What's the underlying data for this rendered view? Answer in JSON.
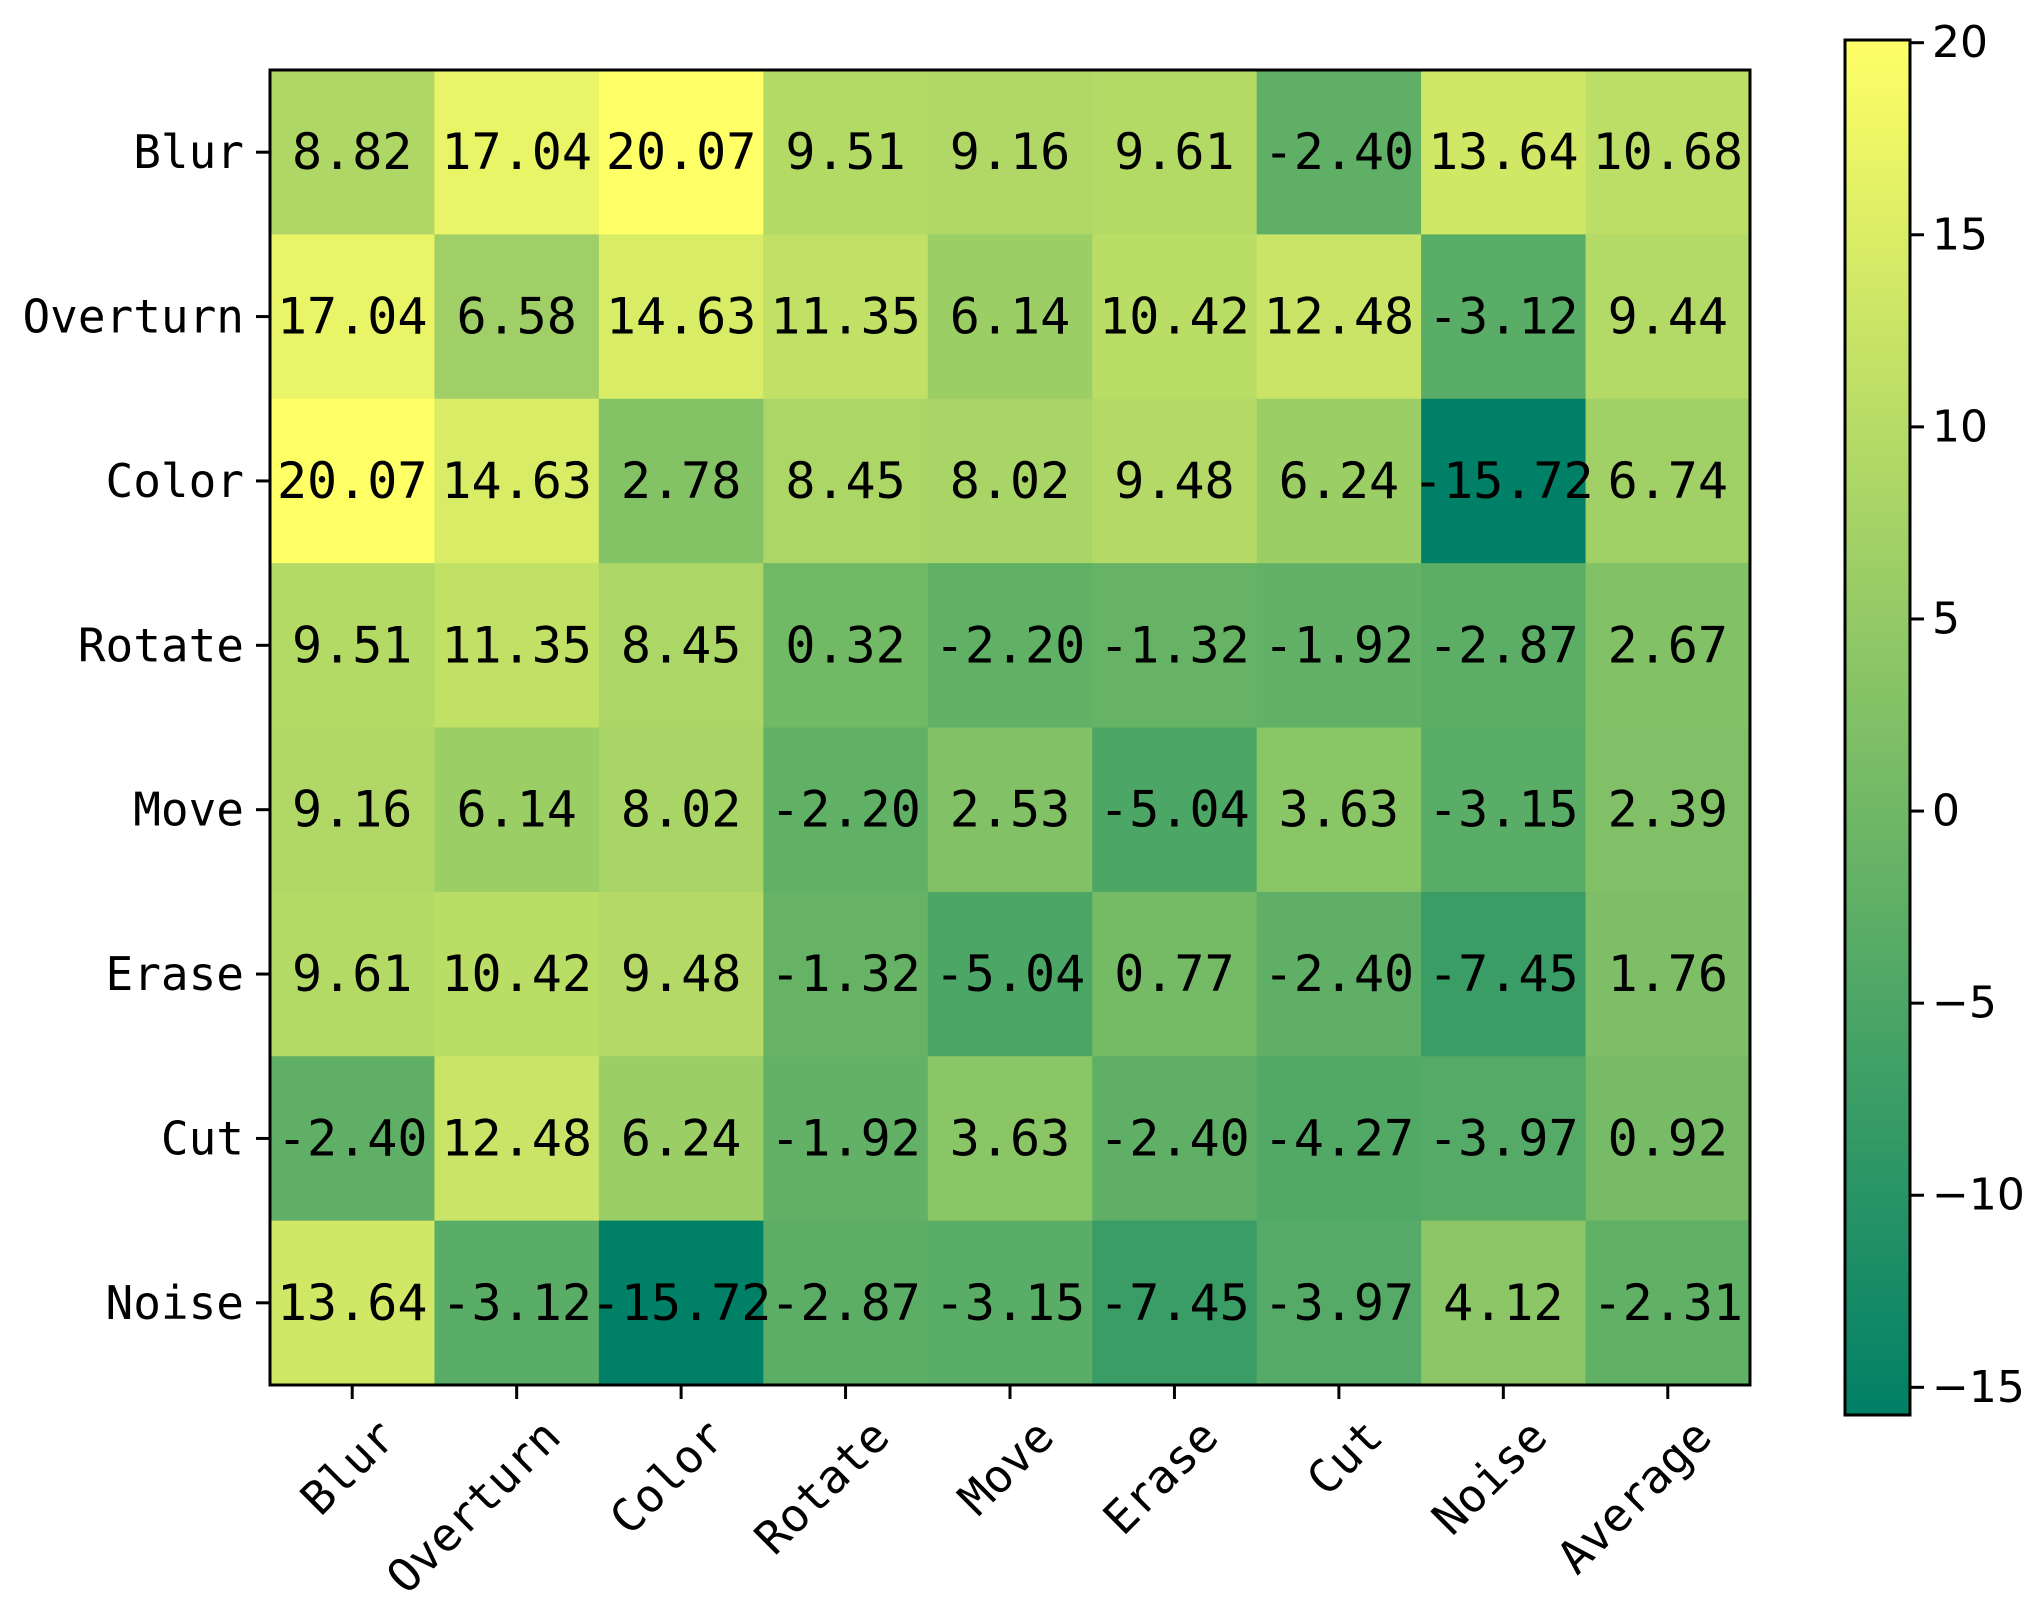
{
  "chart_data": {
    "type": "heatmap",
    "title": "",
    "xlabel": "",
    "ylabel": "",
    "rows": [
      "Blur",
      "Overturn",
      "Color",
      "Rotate",
      "Move",
      "Erase",
      "Cut",
      "Noise"
    ],
    "columns": [
      "Blur",
      "Overturn",
      "Color",
      "Rotate",
      "Move",
      "Erase",
      "Cut",
      "Noise",
      "Average"
    ],
    "values": [
      [
        8.82,
        17.04,
        20.07,
        9.51,
        9.16,
        9.61,
        -2.4,
        13.64,
        10.68
      ],
      [
        17.04,
        6.58,
        14.63,
        11.35,
        6.14,
        10.42,
        12.48,
        -3.12,
        9.44
      ],
      [
        20.07,
        14.63,
        2.78,
        8.45,
        8.02,
        9.48,
        6.24,
        -15.72,
        6.74
      ],
      [
        9.51,
        11.35,
        8.45,
        0.32,
        -2.2,
        -1.32,
        -1.92,
        -2.87,
        2.67
      ],
      [
        9.16,
        6.14,
        8.02,
        -2.2,
        2.53,
        -5.04,
        3.63,
        -3.15,
        2.39
      ],
      [
        9.61,
        10.42,
        9.48,
        -1.32,
        -5.04,
        0.77,
        -2.4,
        -7.45,
        1.76
      ],
      [
        -2.4,
        12.48,
        6.24,
        -1.92,
        3.63,
        -2.4,
        -4.27,
        -3.97,
        0.92
      ],
      [
        13.64,
        -3.12,
        -15.72,
        -2.87,
        -3.15,
        -7.45,
        -3.97,
        4.12,
        -2.31
      ]
    ],
    "cell_labels": [
      [
        "8.82",
        "17.04",
        "20.07",
        "9.51",
        "9.16",
        "9.61",
        "-2.40",
        "13.64",
        "10.68"
      ],
      [
        "17.04",
        "6.58",
        "14.63",
        "11.35",
        "6.14",
        "10.42",
        "12.48",
        "-3.12",
        "9.44"
      ],
      [
        "20.07",
        "14.63",
        "2.78",
        "8.45",
        "8.02",
        "9.48",
        "6.24",
        "-15.72",
        "6.74"
      ],
      [
        "9.51",
        "11.35",
        "8.45",
        "0.32",
        "-2.20",
        "-1.32",
        "-1.92",
        "-2.87",
        "2.67"
      ],
      [
        "9.16",
        "6.14",
        "8.02",
        "-2.20",
        "2.53",
        "-5.04",
        "3.63",
        "-3.15",
        "2.39"
      ],
      [
        "9.61",
        "10.42",
        "9.48",
        "-1.32",
        "-5.04",
        "0.77",
        "-2.40",
        "-7.45",
        "1.76"
      ],
      [
        "-2.40",
        "12.48",
        "6.24",
        "-1.92",
        "3.63",
        "-2.40",
        "-4.27",
        "-3.97",
        "0.92"
      ],
      [
        "13.64",
        "-3.12",
        "-15.72",
        "-2.87",
        "-3.15",
        "-7.45",
        "-3.97",
        "4.12",
        "-2.31"
      ]
    ],
    "colorbar": {
      "min": -15.72,
      "max": 20.07,
      "ticks": [
        20,
        15,
        10,
        5,
        0,
        -5,
        -10,
        -15
      ],
      "tick_labels": [
        "20",
        "15",
        "10",
        "5",
        "0",
        "−5",
        "−10",
        "−15"
      ],
      "colormap": "summer",
      "color_low": "#008066",
      "color_high": "#ffff66"
    },
    "grid": false
  }
}
